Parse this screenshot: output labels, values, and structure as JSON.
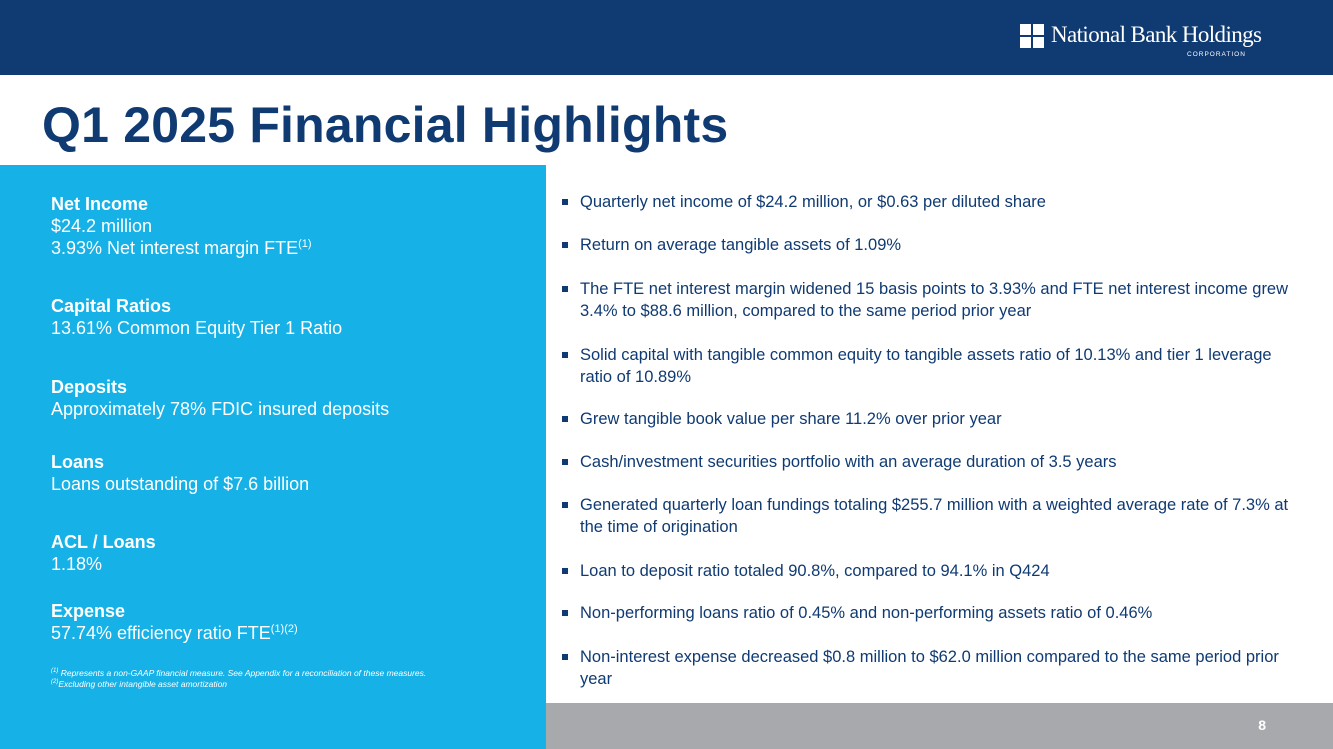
{
  "header": {
    "logo_name": "National Bank Holdings",
    "logo_sub": "CORPORATION"
  },
  "title": "Q1 2025 Financial Highlights",
  "metrics": [
    {
      "title": "Net Income",
      "line1": "$24.2 million",
      "line2": "3.93% Net interest margin FTE",
      "line2_sup": "(1)"
    },
    {
      "title": "Capital Ratios",
      "line1": "13.61% Common Equity Tier 1 Ratio"
    },
    {
      "title": "Deposits",
      "line1": "Approximately 78% FDIC insured deposits"
    },
    {
      "title": "Loans",
      "line1": "Loans outstanding of $7.6 billion"
    },
    {
      "title": "ACL / Loans",
      "line1": "1.18%"
    },
    {
      "title": "Expense",
      "line1": "57.74% efficiency ratio FTE",
      "line1_sup": "(1)(2)"
    }
  ],
  "footnotes": [
    {
      "mark": "(1)",
      "text": " Represents a non-GAAP financial measure. See Appendix for a reconciliation of these measures."
    },
    {
      "mark": "(2)",
      "text": "Excluding other intangible asset amortization"
    }
  ],
  "bullets": [
    "Quarterly net income of $24.2 million, or $0.63 per diluted share",
    "Return on average tangible assets of 1.09%",
    "The FTE net interest margin widened 15 basis points to 3.93% and FTE net interest income grew 3.4% to $88.6 million, compared to the same period prior year",
    "Solid capital with tangible common equity to tangible assets ratio of 10.13% and tier 1 leverage ratio of 10.89%",
    "Grew tangible book value per share 11.2% over prior year",
    "Cash/investment securities portfolio with an average duration of 3.5 years",
    "Generated quarterly loan fundings totaling $255.7 million with a weighted average rate of 7.3% at the time of origination",
    "Loan to deposit ratio totaled 90.8%, compared to 94.1% in Q424",
    "Non-performing loans ratio of 0.45% and non-performing assets ratio of 0.46%",
    "Non-interest expense decreased $0.8 million to $62.0 million compared to the same period prior year"
  ],
  "page_number": "8",
  "colors": {
    "navy": "#0f3a72",
    "cyan": "#16b1e7",
    "gray": "#a7a9ac"
  }
}
